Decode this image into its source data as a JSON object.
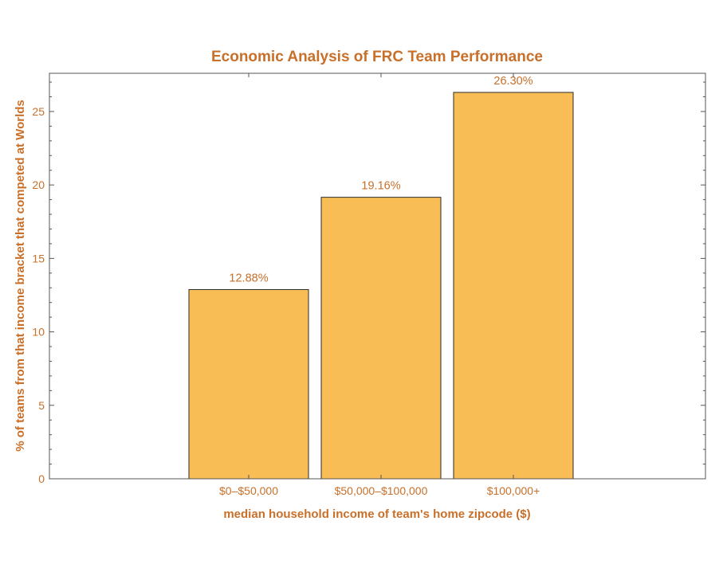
{
  "colors": {
    "text": "#c8702a",
    "bar_fill": "#f9bd55",
    "bar_stroke": "#2b2b2b",
    "frame": "#555555"
  },
  "chart_data": {
    "type": "bar",
    "title": "Economic Analysis of FRC Team Performance",
    "xlabel": "median household income of team's home zipcode ($)",
    "ylabel": "% of teams from that income bracket that competed at Worlds",
    "categories": [
      "$0–$50,000",
      "$50,000–$100,000",
      "$100,000+"
    ],
    "values": [
      12.88,
      19.16,
      26.3
    ],
    "data_labels": [
      "12.88%",
      "19.16%",
      "26.30%"
    ],
    "ylim": [
      0,
      27.6
    ],
    "yticks": [
      0,
      5,
      10,
      15,
      20,
      25
    ],
    "grid": false,
    "legend": "none"
  }
}
